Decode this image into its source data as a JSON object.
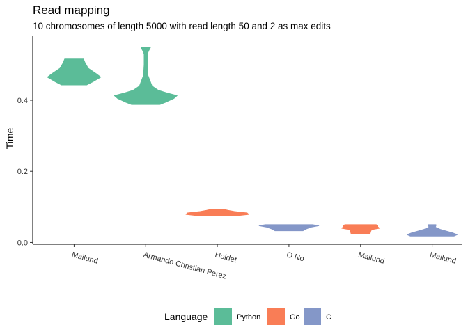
{
  "chart_data": {
    "type": "violin",
    "title": "Read mapping",
    "subtitle": "10 chromosomes of length 5000 with read length 50 and 2 as max edits",
    "xlabel": "",
    "ylabel": "Time",
    "ylim": [
      -0.005,
      0.58
    ],
    "yticks": [
      "0.0",
      "0.2",
      "0.4"
    ],
    "ytick_values": [
      0.0,
      0.2,
      0.4
    ],
    "grid": false,
    "legend": {
      "title": "Language",
      "position": "bottom",
      "entries": [
        {
          "label": "Python",
          "color": "#5BBC98"
        },
        {
          "label": "Go",
          "color": "#F97D56"
        },
        {
          "label": "C",
          "color": "#8497C8"
        }
      ]
    },
    "categories": [
      "Mailund",
      "Armando Christian Perez",
      "Holdet",
      "O No",
      "Mailund",
      "Mailund"
    ],
    "violins": [
      {
        "category": "Mailund",
        "language": "Python",
        "min": 0.443,
        "max": 0.516,
        "profile": [
          [
            0.443,
            0.4
          ],
          [
            0.452,
            0.6
          ],
          [
            0.465,
            0.85
          ],
          [
            0.475,
            0.7
          ],
          [
            0.49,
            0.45
          ],
          [
            0.505,
            0.35
          ],
          [
            0.516,
            0.3
          ]
        ]
      },
      {
        "category": "Armando Christian Perez",
        "language": "Python",
        "min": 0.388,
        "max": 0.548,
        "profile": [
          [
            0.388,
            0.45
          ],
          [
            0.395,
            0.65
          ],
          [
            0.405,
            0.9
          ],
          [
            0.413,
            1.0
          ],
          [
            0.42,
            0.7
          ],
          [
            0.428,
            0.4
          ],
          [
            0.44,
            0.2
          ],
          [
            0.47,
            0.07
          ],
          [
            0.5,
            0.05
          ],
          [
            0.53,
            0.05
          ],
          [
            0.54,
            0.1
          ],
          [
            0.548,
            0.15
          ]
        ]
      },
      {
        "category": "Holdet",
        "language": "Go",
        "min": 0.075,
        "max": 0.093,
        "profile": [
          [
            0.075,
            0.6
          ],
          [
            0.079,
            1.0
          ],
          [
            0.083,
            0.95
          ],
          [
            0.087,
            0.55
          ],
          [
            0.09,
            0.35
          ],
          [
            0.093,
            0.2
          ]
        ]
      },
      {
        "category": "O No",
        "language": "C",
        "min": 0.033,
        "max": 0.05,
        "profile": [
          [
            0.033,
            0.45
          ],
          [
            0.038,
            0.55
          ],
          [
            0.043,
            0.7
          ],
          [
            0.047,
            0.95
          ],
          [
            0.05,
            0.75
          ]
        ]
      },
      {
        "category": "Mailund",
        "language": "Go",
        "min": 0.024,
        "max": 0.05,
        "profile": [
          [
            0.024,
            0.3
          ],
          [
            0.03,
            0.32
          ],
          [
            0.036,
            0.35
          ],
          [
            0.04,
            0.6
          ],
          [
            0.044,
            0.55
          ],
          [
            0.048,
            0.55
          ],
          [
            0.05,
            0.5
          ]
        ]
      },
      {
        "category": "Mailund",
        "language": "C",
        "min": 0.018,
        "max": 0.05,
        "profile": [
          [
            0.018,
            0.7
          ],
          [
            0.022,
            0.8
          ],
          [
            0.027,
            0.65
          ],
          [
            0.032,
            0.45
          ],
          [
            0.037,
            0.25
          ],
          [
            0.043,
            0.1
          ],
          [
            0.047,
            0.12
          ],
          [
            0.05,
            0.12
          ]
        ]
      }
    ]
  }
}
